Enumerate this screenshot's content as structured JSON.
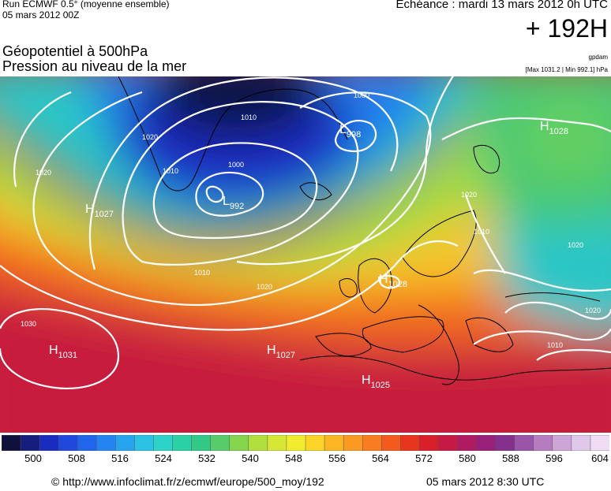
{
  "header": {
    "run_line1": "Run ECMWF 0.5° (moyenne ensemble)",
    "run_line2": "05 mars 2012 00Z",
    "echeance": "Echéance : mardi 13 mars 2012 0h UTC",
    "lead": "+ 192H",
    "title_line1": "Géopotentiel à 500hPa",
    "title_line2": "Pression au niveau de la mer",
    "producer": "gpdam",
    "minmax": "[Max 1031.2 | Min 992.1] hPa"
  },
  "map": {
    "pressure_centers": [
      {
        "letter": "L",
        "value": "998"
      },
      {
        "letter": "L",
        "value": "992"
      },
      {
        "letter": "H",
        "value": "1028"
      },
      {
        "letter": "H",
        "value": "1027"
      },
      {
        "letter": "H",
        "value": "1028"
      },
      {
        "letter": "H",
        "value": "1031"
      },
      {
        "letter": "H",
        "value": "1027"
      },
      {
        "letter": "H",
        "value": "1025"
      }
    ],
    "isobar_labels": [
      "1010",
      "1000",
      "1010",
      "1000",
      "1020",
      "1020",
      "1020",
      "1010",
      "1020",
      "1030",
      "1020",
      "1020",
      "1010",
      "1010"
    ]
  },
  "scale": {
    "colors": [
      "#10103c",
      "#151e7c",
      "#1a2cc0",
      "#1f49dc",
      "#2165ea",
      "#2485f2",
      "#27a4ee",
      "#2cc2e3",
      "#2dd3c8",
      "#2bd0a5",
      "#34c886",
      "#58cc6a",
      "#86d54e",
      "#b1df3e",
      "#d6e835",
      "#f2ec2e",
      "#fbd427",
      "#fcb624",
      "#fb9a22",
      "#f87c20",
      "#f35a1d",
      "#e8351d",
      "#d91f2a",
      "#c61a45",
      "#b01a60",
      "#98207a",
      "#86308e",
      "#9b55a8",
      "#b57cbf",
      "#cda5d6",
      "#e0c8ea",
      "#eeddf4"
    ],
    "labels": [
      "500",
      "508",
      "516",
      "524",
      "532",
      "540",
      "548",
      "556",
      "564",
      "572",
      "580",
      "588",
      "596",
      "604"
    ]
  },
  "footer": {
    "url": "© http://www.infoclimat.fr/z/ecmwf/europe/500_moy/192",
    "date": "05 mars 2012  8:30 UTC"
  }
}
